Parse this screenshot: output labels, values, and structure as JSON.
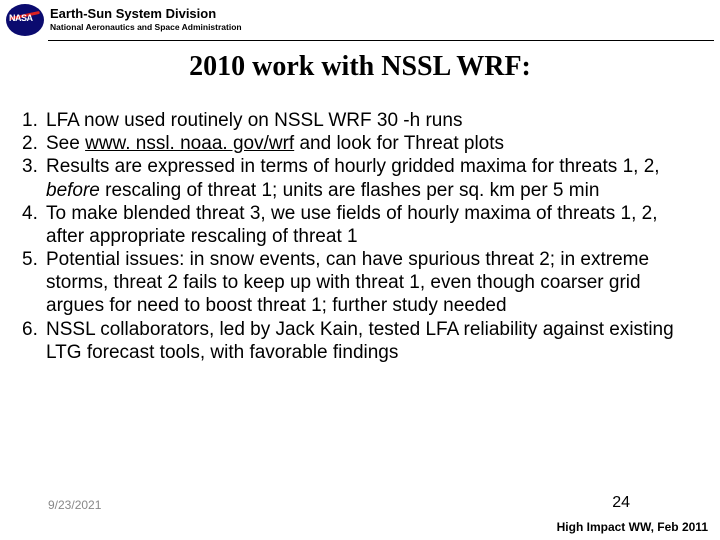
{
  "header": {
    "division_title": "Earth-Sun System Division",
    "subtitle": "National Aeronautics and Space Administration"
  },
  "title": "2010 work with NSSL WRF:",
  "items": [
    {
      "num": "1.",
      "pre": "LFA now used routinely on NSSL WRF 30 -h runs"
    },
    {
      "num": "2.",
      "pre": "See ",
      "link": "www. nssl. noaa. gov/wrf",
      "post": "  and look for Threat plots"
    },
    {
      "num": "3.",
      "pre": "Results are expressed in terms of hourly gridded maxima for threats 1, 2, ",
      "italic": "before",
      "post": " rescaling of threat 1; units are flashes per sq. km per 5 min"
    },
    {
      "num": "4.",
      "pre": "To make blended threat 3, we use fields of hourly maxima of threats 1, 2, after appropriate rescaling of threat 1"
    },
    {
      "num": "5.",
      "pre": "Potential issues: in snow events, can have spurious threat 2; in extreme storms, threat 2 fails to keep up with threat 1, even though coarser grid argues for need to boost threat 1; further study needed"
    },
    {
      "num": "6.",
      "pre": "NSSL collaborators, led by Jack Kain, tested LFA reliability against existing LTG forecast tools, with favorable findings"
    }
  ],
  "footer": {
    "date": "9/23/2021",
    "page": "24",
    "event": "High Impact WW, Feb 2011"
  }
}
